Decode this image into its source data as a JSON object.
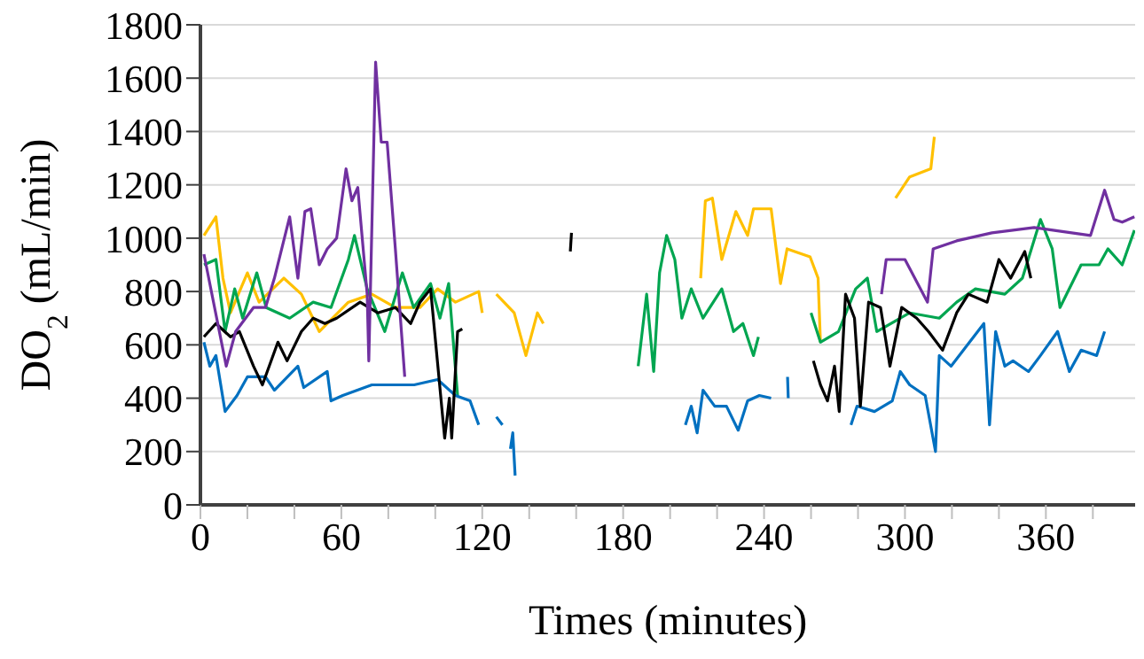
{
  "chart_data": {
    "type": "line",
    "xlabel": "Times (minutes)",
    "ylabel": "DO$_{2}$ (mL/min)",
    "xlim": [
      0,
      398
    ],
    "xticks": [
      0,
      {
        "value": 20,
        "label": null
      },
      {
        "value": 40,
        "label": null
      },
      60,
      {
        "value": 80,
        "label": null
      },
      {
        "value": 100,
        "label": null
      },
      120,
      {
        "value": 140,
        "label": null
      },
      {
        "value": 160,
        "label": null
      },
      180,
      {
        "value": 200,
        "label": null
      },
      {
        "value": 220,
        "label": null
      },
      240,
      {
        "value": 260,
        "label": null
      },
      {
        "value": 280,
        "label": null
      },
      300,
      {
        "value": 320,
        "label": null
      },
      {
        "value": 340,
        "label": null
      },
      360,
      {
        "value": 380,
        "label": null
      }
    ],
    "ylim": [
      0,
      1800
    ],
    "yticks": [
      0,
      200,
      400,
      600,
      800,
      1000,
      1200,
      1400,
      1600,
      1800
    ],
    "grid": "y",
    "marker": "none",
    "line_style": "solid",
    "series": [
      {
        "color": "#ffc000",
        "x": [
          1.5,
          6.6,
          9.6,
          12.8,
          20,
          25,
          35.5,
          43,
          50.6,
          63,
          73,
          83,
          93.5,
          101,
          108.6,
          118.5,
          120,
          123,
          126,
          133.6,
          138.6,
          143.5,
          146,
          180,
          213,
          215,
          218,
          222,
          228,
          233,
          235.5,
          243,
          247,
          249.8,
          259.6,
          263,
          264,
          280,
          296,
          302,
          311,
          312.5
        ],
        "values": [
          1010,
          1080,
          850,
          720,
          870,
          760,
          850,
          790,
          650,
          760,
          790,
          740,
          740,
          810,
          760,
          800,
          720,
          null,
          790,
          720,
          560,
          720,
          680,
          null,
          850,
          1140,
          1150,
          920,
          1100,
          1010,
          1110,
          1110,
          830,
          960,
          930,
          850,
          610,
          null,
          1150,
          1230,
          1260,
          1380
        ]
      },
      {
        "color": "#00a550",
        "x": [
          1.5,
          6.6,
          10.5,
          14.6,
          18,
          24,
          28,
          38,
          48,
          55.6,
          63,
          65.6,
          71,
          78.5,
          86,
          90.8,
          98,
          102,
          105.7,
          109.5,
          150,
          186.4,
          190,
          193,
          195.5,
          198.5,
          202,
          205,
          209,
          214,
          222,
          227,
          231,
          235.5,
          237.6,
          250,
          260,
          264,
          271.7,
          279,
          284,
          288,
          302,
          314.6,
          322,
          330,
          342.5,
          350,
          357.7,
          362.7,
          366,
          375,
          382.6,
          386.4,
          392.5,
          397.7
        ],
        "values": [
          900,
          920,
          650,
          810,
          700,
          870,
          740,
          700,
          760,
          740,
          920,
          1010,
          810,
          650,
          870,
          740,
          830,
          700,
          830,
          410,
          null,
          520,
          790,
          500,
          870,
          1010,
          920,
          700,
          810,
          700,
          810,
          650,
          680,
          560,
          630,
          null,
          720,
          610,
          650,
          810,
          850,
          650,
          720,
          700,
          760,
          810,
          790,
          850,
          1070,
          960,
          740,
          900,
          900,
          960,
          900,
          1030
        ]
      },
      {
        "color": "#0070c0",
        "x": [
          1.5,
          4,
          6.6,
          10.5,
          15.6,
          20,
          27.7,
          31.5,
          41.5,
          44,
          54,
          55.6,
          60.6,
          73,
          91,
          101,
          108.6,
          114.8,
          118.5,
          122,
          126,
          128.6,
          130,
          132,
          133,
          134,
          170,
          206.5,
          209,
          211.5,
          214,
          219,
          224,
          229,
          233,
          238,
          243,
          246,
          250,
          250.3,
          260,
          277,
          279.6,
          287,
          294.6,
          298,
          302,
          308.6,
          313,
          314.6,
          319.6,
          327.5,
          333.6,
          336,
          338.6,
          342.5,
          346,
          352.6,
          357.7,
          365,
          370,
          375,
          381.6,
          385
        ],
        "values": [
          610,
          520,
          560,
          350,
          410,
          480,
          480,
          430,
          520,
          440,
          500,
          390,
          410,
          450,
          450,
          470,
          410,
          390,
          300,
          null,
          330,
          300,
          null,
          210,
          270,
          110,
          null,
          300,
          370,
          270,
          430,
          370,
          370,
          280,
          390,
          410,
          400,
          null,
          480,
          400,
          null,
          300,
          370,
          350,
          390,
          500,
          450,
          410,
          200,
          560,
          520,
          610,
          680,
          300,
          650,
          520,
          540,
          500,
          560,
          650,
          500,
          580,
          560,
          650
        ]
      },
      {
        "color": "#000000",
        "x": [
          1.5,
          6.6,
          12.8,
          16.6,
          22.6,
          26.4,
          33,
          36.9,
          43,
          48,
          53,
          58,
          68,
          75.5,
          83,
          89.5,
          93.5,
          98,
          104,
          106,
          107,
          109.5,
          111.5,
          130,
          157.5,
          158,
          200,
          261,
          264,
          267,
          270,
          272,
          274.7,
          278.5,
          281,
          284.5,
          289.6,
          293.6,
          298.6,
          305,
          310,
          316,
          322,
          327,
          335,
          340,
          345,
          351,
          353.6
        ],
        "values": [
          630,
          680,
          630,
          650,
          520,
          450,
          610,
          540,
          650,
          700,
          680,
          700,
          760,
          720,
          740,
          680,
          760,
          810,
          250,
          400,
          250,
          650,
          660,
          null,
          950,
          1020,
          null,
          540,
          450,
          390,
          520,
          350,
          790,
          700,
          370,
          760,
          740,
          520,
          740,
          700,
          650,
          580,
          720,
          790,
          760,
          920,
          850,
          950,
          850
        ]
      },
      {
        "color": "#7030a0",
        "x": [
          1.5,
          11,
          15,
          22.6,
          27.7,
          31.5,
          38,
          41.5,
          44.5,
          47,
          50.6,
          54,
          58,
          62,
          64.5,
          67,
          71,
          71.7,
          74.6,
          77,
          79.5,
          83,
          87,
          150,
          290,
          292,
          300,
          309.6,
          312,
          322,
          337,
          355,
          371,
          379,
          385,
          389,
          392.5,
          397.7
        ],
        "values": [
          940,
          520,
          650,
          740,
          740,
          850,
          1080,
          850,
          1100,
          1110,
          900,
          960,
          1000,
          1260,
          1140,
          1190,
          790,
          540,
          1660,
          1360,
          1360,
          960,
          480,
          null,
          790,
          920,
          920,
          760,
          960,
          990,
          1020,
          1040,
          1020,
          1010,
          1180,
          1070,
          1060,
          1080
        ]
      }
    ]
  }
}
